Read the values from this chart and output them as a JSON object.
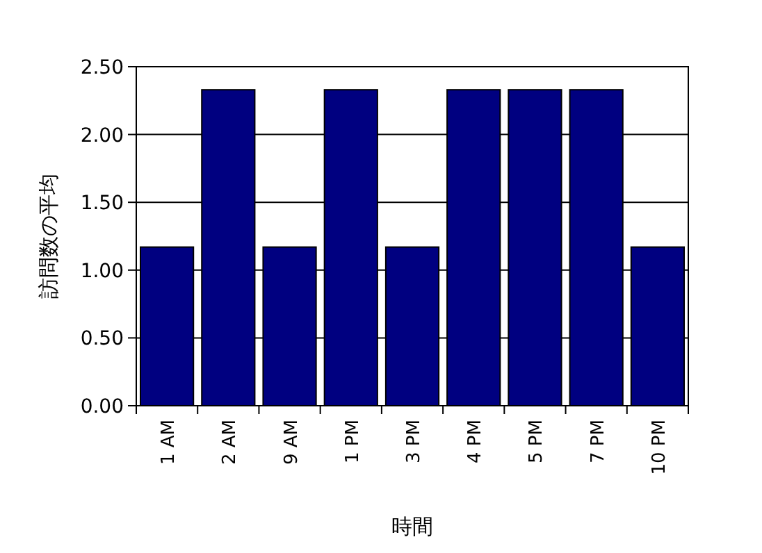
{
  "chart_data": {
    "type": "bar",
    "xlabel": "時間",
    "ylabel": "訪問数の平均",
    "categories": [
      "1 AM",
      "2 AM",
      "9 AM",
      "1 PM",
      "3 PM",
      "4 PM",
      "5 PM",
      "7 PM",
      "10 PM"
    ],
    "values": [
      1.17,
      2.33,
      1.17,
      2.33,
      1.17,
      2.33,
      2.33,
      2.33,
      1.17
    ],
    "color": "#000080",
    "ylim": [
      0,
      2.5
    ],
    "yticks": [
      {
        "value": 0,
        "label": "0.00"
      },
      {
        "value": 0.5,
        "label": "0.50"
      },
      {
        "value": 1,
        "label": "1.00"
      },
      {
        "value": 1.5,
        "label": "1.50"
      },
      {
        "value": 2,
        "label": "2.00"
      },
      {
        "value": 2.5,
        "label": "2.50"
      }
    ],
    "grid": "y"
  }
}
